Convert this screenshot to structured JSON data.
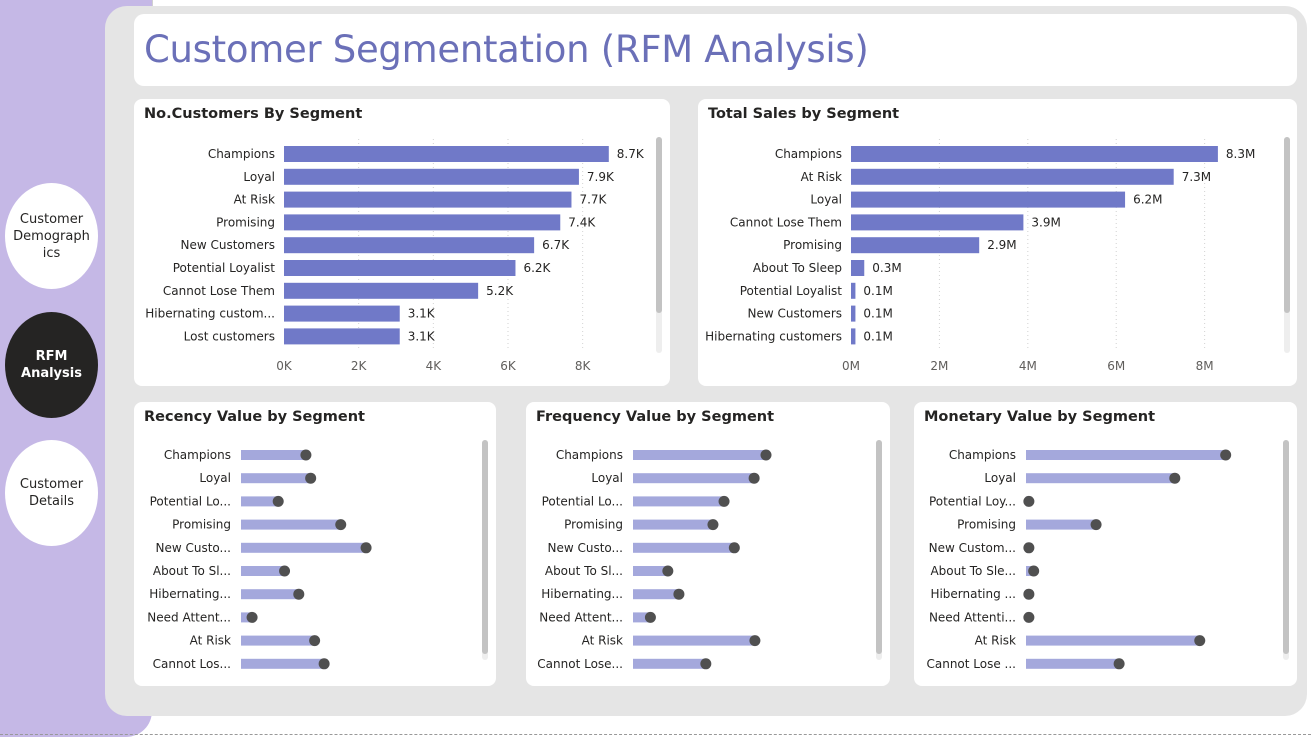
{
  "nav": {
    "items": [
      {
        "label": "Customer Demographics",
        "active": false
      },
      {
        "label": "RFM Analysis",
        "active": true
      },
      {
        "label": "Customer Details",
        "active": false
      }
    ]
  },
  "page_title": "Customer Segmentation (RFM Analysis)",
  "colors": {
    "bar": "#7079c8",
    "lollipop_bar": "#a4a8dc",
    "lollipop_dot": "#505050",
    "nav_bg": "#c5b8e6",
    "title": "#6b70b8"
  },
  "chart_data": [
    {
      "type": "bar",
      "title": "No.Customers By Segment",
      "categories": [
        "Champions",
        "Loyal",
        "At Risk",
        "Promising",
        "New Customers",
        "Potential Loyalist",
        "Cannot Lose Them",
        "Hibernating custom...",
        "Lost customers"
      ],
      "values": [
        8700,
        7900,
        7700,
        7400,
        6700,
        6200,
        5200,
        3100,
        3100
      ],
      "labels": [
        "8.7K",
        "7.9K",
        "7.7K",
        "7.4K",
        "6.7K",
        "6.2K",
        "5.2K",
        "3.1K",
        "3.1K"
      ],
      "ticks": [
        0,
        2000,
        4000,
        6000,
        8000
      ],
      "tick_labels": [
        "0K",
        "2K",
        "4K",
        "6K",
        "8K"
      ],
      "xlim": [
        0,
        9000
      ],
      "grid": true
    },
    {
      "type": "bar",
      "title": "Total Sales by Segment",
      "categories": [
        "Champions",
        "At Risk",
        "Loyal",
        "Cannot Lose Them",
        "Promising",
        "About To Sleep",
        "Potential Loyalist",
        "New Customers",
        "Hibernating customers"
      ],
      "values": [
        8.3,
        7.3,
        6.2,
        3.9,
        2.9,
        0.3,
        0.1,
        0.1,
        0.1
      ],
      "labels": [
        "8.3M",
        "7.3M",
        "6.2M",
        "3.9M",
        "2.9M",
        "0.3M",
        "0.1M",
        "0.1M",
        "0.1M"
      ],
      "ticks": [
        0,
        2,
        4,
        6,
        8
      ],
      "tick_labels": [
        "0M",
        "2M",
        "4M",
        "6M",
        "8M"
      ],
      "xlim": [
        0,
        8.8
      ],
      "grid": true
    },
    {
      "type": "bar",
      "title": "Recency Value by Segment",
      "categories": [
        "Champions",
        "Loyal",
        "Potential Lo...",
        "Promising",
        "New Custo...",
        "About To Sl...",
        "Hibernating...",
        "Need Attent...",
        "At Risk",
        "Cannot Los..."
      ],
      "values": [
        82,
        88,
        47,
        126,
        158,
        55,
        73,
        14,
        93,
        105
      ],
      "xlim": [
        0,
        240
      ]
    },
    {
      "type": "bar",
      "title": "Frequency Value by Segment",
      "categories": [
        "Champions",
        "Loyal",
        "Potential Lo...",
        "Promising",
        "New Custo...",
        "About To Sl...",
        "Hibernating...",
        "Need Attent...",
        "At Risk",
        "Cannot Lose..."
      ],
      "values": [
        168,
        153,
        115,
        101,
        128,
        44,
        58,
        22,
        154,
        92
      ],
      "xlim": [
        0,
        240
      ]
    },
    {
      "type": "bar",
      "title": "Monetary Value by Segment",
      "categories": [
        "Champions",
        "Loyal",
        "Potential Loy...",
        "Promising",
        "New Custom...",
        "About To Sle...",
        "Hibernating ...",
        "Need Attenti...",
        "At Risk",
        "Cannot Lose ..."
      ],
      "values": [
        208,
        155,
        3,
        73,
        3,
        8,
        3,
        3,
        181,
        97
      ],
      "xlim": [
        0,
        250
      ]
    }
  ]
}
